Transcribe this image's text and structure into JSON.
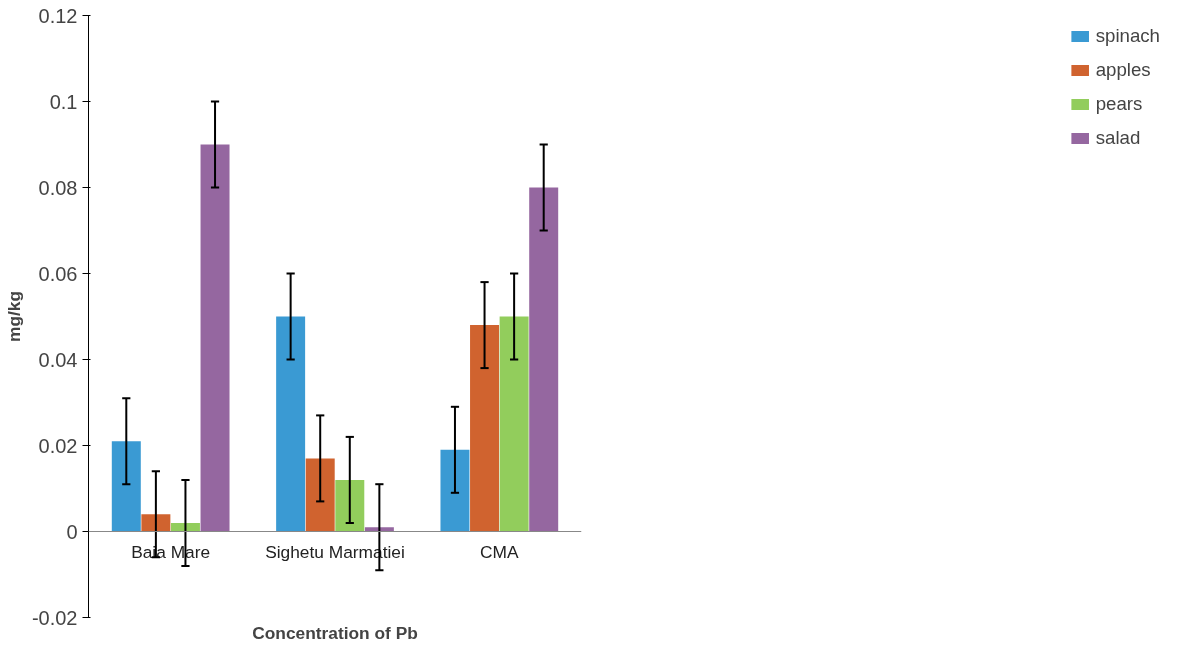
{
  "chart_data": {
    "type": "bar",
    "xlabel": "Concentration of Pb",
    "ylabel": "mg/kg",
    "categories": [
      "Baia Mare",
      "Sighetu Marmatiei",
      "CMA"
    ],
    "series": [
      {
        "name": "spinach",
        "color": "#3a9ad3",
        "values": [
          0.021,
          0.05,
          0.019
        ],
        "errors": [
          0.01,
          0.01,
          0.01
        ]
      },
      {
        "name": "apples",
        "color": "#d0632f",
        "values": [
          0.004,
          0.017,
          0.048
        ],
        "errors": [
          0.01,
          0.01,
          0.01
        ]
      },
      {
        "name": "pears",
        "color": "#92cd5c",
        "values": [
          0.002,
          0.012,
          0.05
        ],
        "errors": [
          0.01,
          0.01,
          0.01
        ]
      },
      {
        "name": "salad",
        "color": "#9567a0",
        "values": [
          0.09,
          0.001,
          0.08
        ],
        "errors": [
          0.01,
          0.01,
          0.01
        ]
      }
    ],
    "ylim": [
      -0.02,
      0.12
    ],
    "yticks": [
      -0.02,
      0,
      0.02,
      0.04,
      0.06,
      0.08,
      0.1,
      0.12
    ],
    "grid": false,
    "legend": "right"
  }
}
